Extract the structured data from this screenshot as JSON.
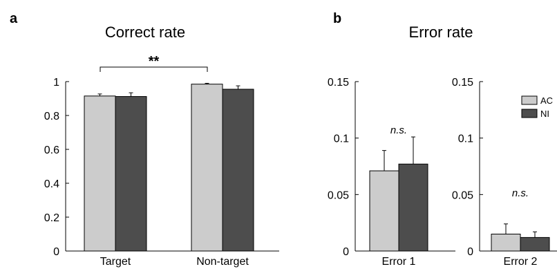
{
  "panels": {
    "a": {
      "letter": "a"
    },
    "b": {
      "letter": "b",
      "title": "Error rate"
    }
  },
  "legend": {
    "entries": [
      {
        "label": "AC",
        "color": "#cccccc"
      },
      {
        "label": "NI",
        "color": "#4d4d4d"
      }
    ]
  },
  "chart_data": [
    {
      "type": "bar",
      "title": "Correct rate",
      "xlabel": "",
      "ylabel": "",
      "categories": [
        "Target",
        "Non-target"
      ],
      "ylim": [
        0,
        1
      ],
      "yticks": [
        0,
        0.2,
        0.4,
        0.6,
        0.8,
        1
      ],
      "ytick_labels": [
        "0",
        "0.2",
        "0.4",
        "0.6",
        "0.8",
        "1"
      ],
      "series": [
        {
          "name": "AC",
          "color": "#cccccc",
          "values": [
            0.915,
            0.985
          ],
          "errors": [
            0.012,
            0.005
          ]
        },
        {
          "name": "NI",
          "color": "#4d4d4d",
          "values": [
            0.912,
            0.955
          ],
          "errors": [
            0.022,
            0.02
          ]
        }
      ],
      "significance": [
        {
          "between": [
            "Target",
            "Non-target"
          ],
          "label": "**"
        }
      ]
    },
    {
      "type": "bar",
      "title": "",
      "xlabel": "",
      "ylabel": "",
      "categories": [
        "Error 1"
      ],
      "ylim": [
        0,
        0.15
      ],
      "yticks": [
        0,
        0.05,
        0.1,
        0.15
      ],
      "ytick_labels": [
        "0",
        "0.05",
        "0.1",
        "0.15"
      ],
      "series": [
        {
          "name": "AC",
          "color": "#cccccc",
          "values": [
            0.071
          ],
          "errors": [
            0.018
          ]
        },
        {
          "name": "NI",
          "color": "#4d4d4d",
          "values": [
            0.077
          ],
          "errors": [
            0.024
          ]
        }
      ],
      "annotation": "n.s."
    },
    {
      "type": "bar",
      "title": "",
      "xlabel": "",
      "ylabel": "",
      "categories": [
        "Error 2"
      ],
      "ylim": [
        0,
        0.15
      ],
      "yticks": [
        0,
        0.05,
        0.1,
        0.15
      ],
      "ytick_labels": [
        "0",
        "0.05",
        "0.1",
        "0.15"
      ],
      "series": [
        {
          "name": "AC",
          "color": "#cccccc",
          "values": [
            0.015
          ],
          "errors": [
            0.009
          ]
        },
        {
          "name": "NI",
          "color": "#4d4d4d",
          "values": [
            0.012
          ],
          "errors": [
            0.005
          ]
        }
      ],
      "annotation": "n.s."
    }
  ]
}
